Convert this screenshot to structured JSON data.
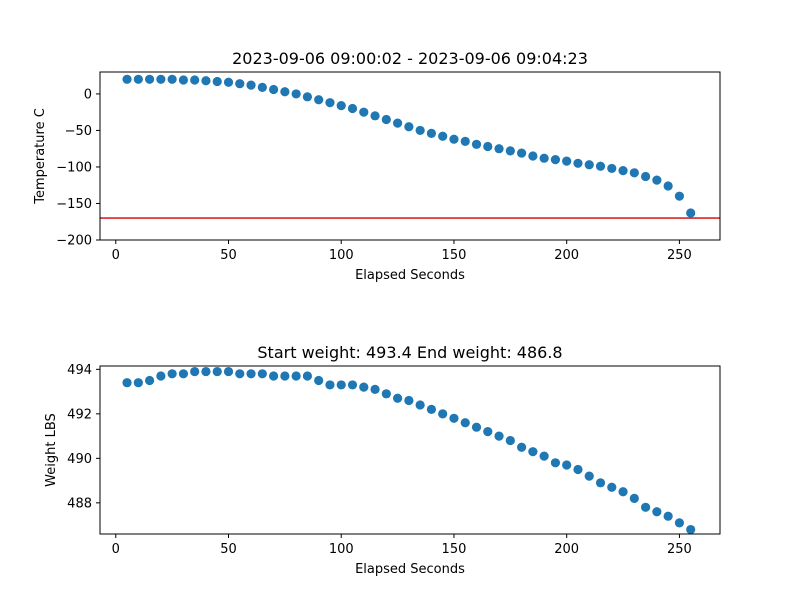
{
  "chart_data": [
    {
      "type": "scatter",
      "title": "2023-09-06 09:00:02 - 2023-09-06 09:04:23",
      "xlabel": "Elapsed Seconds",
      "ylabel": "Temperature C",
      "xlim": [
        -7,
        268
      ],
      "ylim": [
        -200,
        30
      ],
      "xticks": [
        0,
        50,
        100,
        150,
        200,
        250
      ],
      "yticks": [
        0,
        -50,
        -100,
        -150,
        -200
      ],
      "ytick_labels": [
        "0",
        "−50",
        "−100",
        "−150",
        "−200"
      ],
      "grid": false,
      "marker_color": "#1f77b4",
      "reference_line": {
        "y": -170,
        "color": "#d62728"
      },
      "x": [
        5,
        10,
        15,
        20,
        25,
        30,
        35,
        40,
        45,
        50,
        55,
        60,
        65,
        70,
        75,
        80,
        85,
        90,
        95,
        100,
        105,
        110,
        115,
        120,
        125,
        130,
        135,
        140,
        145,
        150,
        155,
        160,
        165,
        170,
        175,
        180,
        185,
        190,
        195,
        200,
        205,
        210,
        215,
        220,
        225,
        230,
        235,
        240,
        245,
        250,
        255
      ],
      "y": [
        20,
        20,
        20,
        20,
        20,
        19,
        19,
        18,
        17,
        16,
        14,
        12,
        9,
        6,
        3,
        0,
        -4,
        -8,
        -12,
        -16,
        -20,
        -25,
        -30,
        -35,
        -40,
        -45,
        -50,
        -54,
        -58,
        -62,
        -65,
        -69,
        -72,
        -75,
        -78,
        -81,
        -85,
        -88,
        -90,
        -92,
        -95,
        -97,
        -99,
        -102,
        -105,
        -108,
        -113,
        -118,
        -126,
        -140,
        -163
      ]
    },
    {
      "type": "scatter",
      "title": "Start weight: 493.4 End weight: 486.8",
      "xlabel": "Elapsed Seconds",
      "ylabel": "Weight LBS",
      "xlim": [
        -7,
        268
      ],
      "ylim": [
        486.6,
        494.15
      ],
      "xticks": [
        0,
        50,
        100,
        150,
        200,
        250
      ],
      "yticks": [
        488,
        490,
        492,
        494
      ],
      "ytick_labels": [
        "488",
        "490",
        "492",
        "494"
      ],
      "grid": false,
      "marker_color": "#1f77b4",
      "x": [
        5,
        10,
        15,
        20,
        25,
        30,
        35,
        40,
        45,
        50,
        55,
        60,
        65,
        70,
        75,
        80,
        85,
        90,
        95,
        100,
        105,
        110,
        115,
        120,
        125,
        130,
        135,
        140,
        145,
        150,
        155,
        160,
        165,
        170,
        175,
        180,
        185,
        190,
        195,
        200,
        205,
        210,
        215,
        220,
        225,
        230,
        235,
        240,
        245,
        250,
        255
      ],
      "y": [
        493.4,
        493.4,
        493.5,
        493.7,
        493.8,
        493.8,
        493.9,
        493.9,
        493.9,
        493.9,
        493.8,
        493.8,
        493.8,
        493.7,
        493.7,
        493.7,
        493.7,
        493.5,
        493.3,
        493.3,
        493.3,
        493.2,
        493.1,
        492.9,
        492.7,
        492.6,
        492.4,
        492.2,
        492.0,
        491.8,
        491.6,
        491.4,
        491.2,
        491.0,
        490.8,
        490.5,
        490.3,
        490.1,
        489.8,
        489.7,
        489.5,
        489.2,
        488.9,
        488.7,
        488.5,
        488.2,
        487.8,
        487.6,
        487.4,
        487.1,
        486.8
      ]
    }
  ]
}
